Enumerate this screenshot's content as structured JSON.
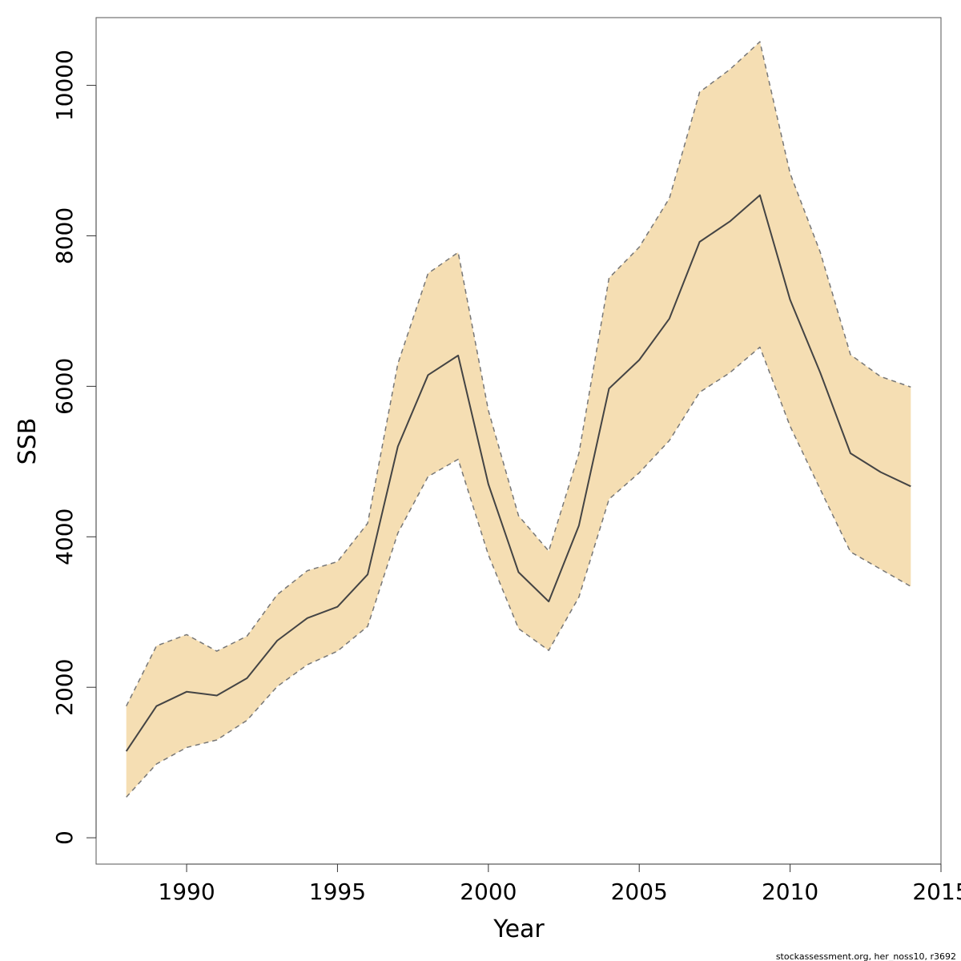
{
  "chart_data": {
    "type": "line",
    "xlabel": "Year",
    "ylabel": "SSB",
    "xlim": [
      1987,
      2015
    ],
    "ylim": [
      -350,
      10900
    ],
    "x_ticks": [
      1990,
      1995,
      2000,
      2005,
      2010,
      2015
    ],
    "y_ticks": [
      0,
      2000,
      4000,
      6000,
      8000,
      10000
    ],
    "grid": false,
    "band_color": "#f5deb3",
    "line_color": "#444444",
    "bound_color": "#777777",
    "x": [
      1988,
      1989,
      1990,
      1991,
      1992,
      1993,
      1994,
      1995,
      1996,
      1997,
      1998,
      1999,
      2000,
      2001,
      2002,
      2003,
      2004,
      2005,
      2006,
      2007,
      2008,
      2009,
      2010,
      2011,
      2012,
      2013,
      2014
    ],
    "series": [
      {
        "role": "estimate",
        "values": [
          1150,
          1750,
          1940,
          1890,
          2120,
          2620,
          2920,
          3070,
          3500,
          5200,
          6150,
          6410,
          4700,
          3530,
          3140,
          4150,
          5970,
          6350,
          6900,
          7920,
          8190,
          8540,
          7150,
          6180,
          5110,
          4860,
          4670
        ]
      },
      {
        "role": "upper",
        "values": [
          1750,
          2550,
          2700,
          2480,
          2680,
          3230,
          3550,
          3670,
          4180,
          6300,
          7500,
          7780,
          5680,
          4280,
          3810,
          5110,
          7440,
          7850,
          8500,
          9910,
          10210,
          10580,
          8830,
          7780,
          6420,
          6130,
          5990
        ]
      },
      {
        "role": "lower",
        "values": [
          540,
          980,
          1200,
          1300,
          1560,
          2010,
          2300,
          2480,
          2810,
          4050,
          4800,
          5030,
          3760,
          2780,
          2490,
          3200,
          4500,
          4850,
          5280,
          5920,
          6180,
          6520,
          5470,
          4630,
          3800,
          3570,
          3340
        ]
      }
    ]
  },
  "footer": {
    "credit": "stockassessment.org, her_noss10, r3692"
  }
}
